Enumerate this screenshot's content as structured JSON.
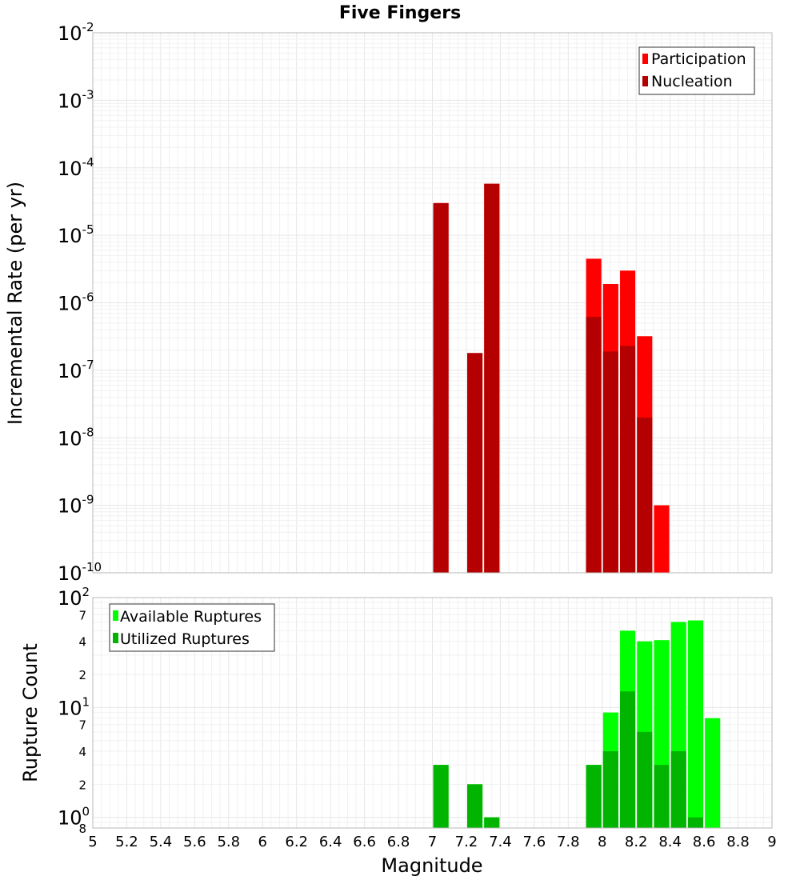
{
  "title": "Five Fingers",
  "xlabel": "Magnitude",
  "colors": {
    "participation": "#ff0000",
    "nucleation": "#b40000",
    "available": "#00ff00",
    "utilized": "#00b400"
  },
  "chart_data": [
    {
      "type": "bar",
      "title": "Five Fingers",
      "ylabel": "Incremental Rate (per yr)",
      "yscale": "log",
      "ylim": [
        1e-10,
        0.01
      ],
      "xlim": [
        5,
        9
      ],
      "grid": true,
      "legend_position": "top-right",
      "bar_width": 0.09,
      "series": [
        {
          "name": "Participation",
          "color": "#ff0000",
          "x": [
            7.05,
            7.25,
            7.35,
            7.95,
            8.05,
            8.15,
            8.25,
            8.35
          ],
          "values": [
            3e-05,
            1.8e-07,
            5.8e-05,
            4.5e-06,
            1.9e-06,
            3e-06,
            3.2e-07,
            1e-09
          ]
        },
        {
          "name": "Nucleation",
          "color": "#b40000",
          "x": [
            7.05,
            7.25,
            7.35,
            7.95,
            8.05,
            8.15,
            8.25
          ],
          "values": [
            3e-05,
            1.8e-07,
            5.8e-05,
            6.2e-07,
            1.9e-07,
            2.3e-07,
            2e-08
          ]
        }
      ]
    },
    {
      "type": "bar",
      "ylabel": "Rupture Count",
      "yscale": "log",
      "ylim": [
        0.8,
        100
      ],
      "xlim": [
        5,
        9
      ],
      "grid": true,
      "legend_position": "top-left",
      "bar_width": 0.09,
      "series": [
        {
          "name": "Available Ruptures",
          "color": "#00ff00",
          "x": [
            7.05,
            7.25,
            7.35,
            7.95,
            8.05,
            8.15,
            8.25,
            8.35,
            8.45,
            8.55,
            8.65
          ],
          "values": [
            3,
            2,
            1,
            3,
            9,
            50,
            40,
            41,
            60,
            62,
            8
          ]
        },
        {
          "name": "Utilized Ruptures",
          "color": "#00b400",
          "x": [
            7.05,
            7.25,
            7.35,
            7.95,
            8.05,
            8.15,
            8.25,
            8.35,
            8.45,
            8.55
          ],
          "values": [
            3,
            2,
            1,
            3,
            4,
            14,
            6,
            3,
            4,
            1
          ]
        }
      ]
    }
  ],
  "x_ticks": [
    "5",
    "5.2",
    "5.4",
    "5.6",
    "5.8",
    "6",
    "6.2",
    "6.4",
    "6.6",
    "6.8",
    "7",
    "7.2",
    "7.4",
    "7.6",
    "7.8",
    "8",
    "8.2",
    "8.4",
    "8.6",
    "8.8",
    "9"
  ],
  "top_y_ticks": [
    {
      "base": "10",
      "exp": "-10"
    },
    {
      "base": "10",
      "exp": "-9"
    },
    {
      "base": "10",
      "exp": "-8"
    },
    {
      "base": "10",
      "exp": "-7"
    },
    {
      "base": "10",
      "exp": "-6"
    },
    {
      "base": "10",
      "exp": "-5"
    },
    {
      "base": "10",
      "exp": "-4"
    },
    {
      "base": "10",
      "exp": "-3"
    },
    {
      "base": "10",
      "exp": "-2"
    }
  ],
  "bottom_y_ticks": {
    "major": [
      {
        "base": "10",
        "exp": "0"
      },
      {
        "base": "10",
        "exp": "1"
      },
      {
        "base": "10",
        "exp": "2"
      }
    ],
    "minor": [
      "8",
      "2",
      "4",
      "7",
      "2",
      "4",
      "7"
    ]
  }
}
